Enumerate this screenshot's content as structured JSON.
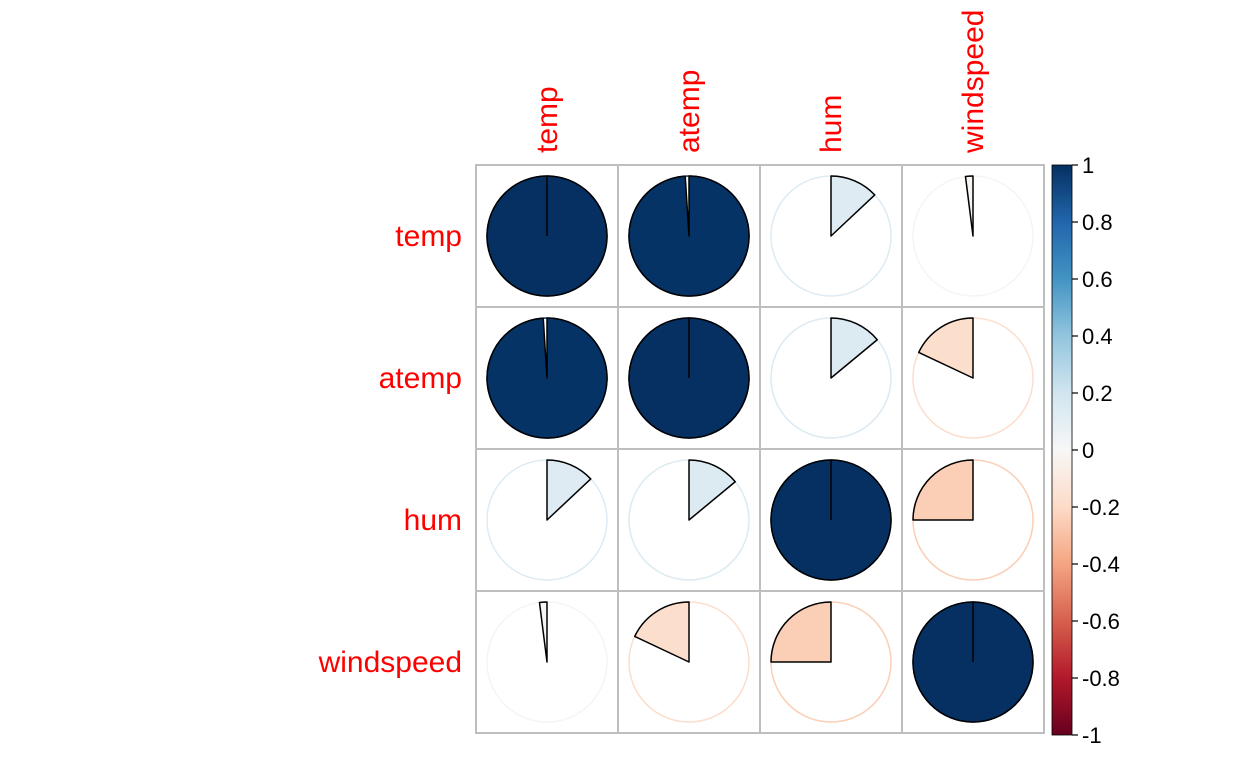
{
  "chart_data": {
    "type": "heatmap",
    "title": "",
    "method": "pie",
    "variables": [
      "temp",
      "atemp",
      "hum",
      "windspeed"
    ],
    "matrix": [
      [
        1.0,
        0.99,
        0.13,
        -0.02
      ],
      [
        0.99,
        1.0,
        0.14,
        -0.18
      ],
      [
        0.13,
        0.14,
        1.0,
        -0.25
      ],
      [
        -0.02,
        -0.18,
        -0.25,
        1.0
      ]
    ],
    "colorbar": {
      "range": [
        -1,
        1
      ],
      "ticks": [
        "1",
        "0.8",
        "0.6",
        "0.4",
        "0.2",
        "0",
        "-0.2",
        "-0.4",
        "-0.6",
        "-0.8",
        "-1"
      ]
    },
    "colors": {
      "label": "#ff0000",
      "grid": "#bebebe",
      "positive_strong": "#053061",
      "neutral": "#f7f7f7",
      "negative_strong": "#67001f"
    }
  }
}
